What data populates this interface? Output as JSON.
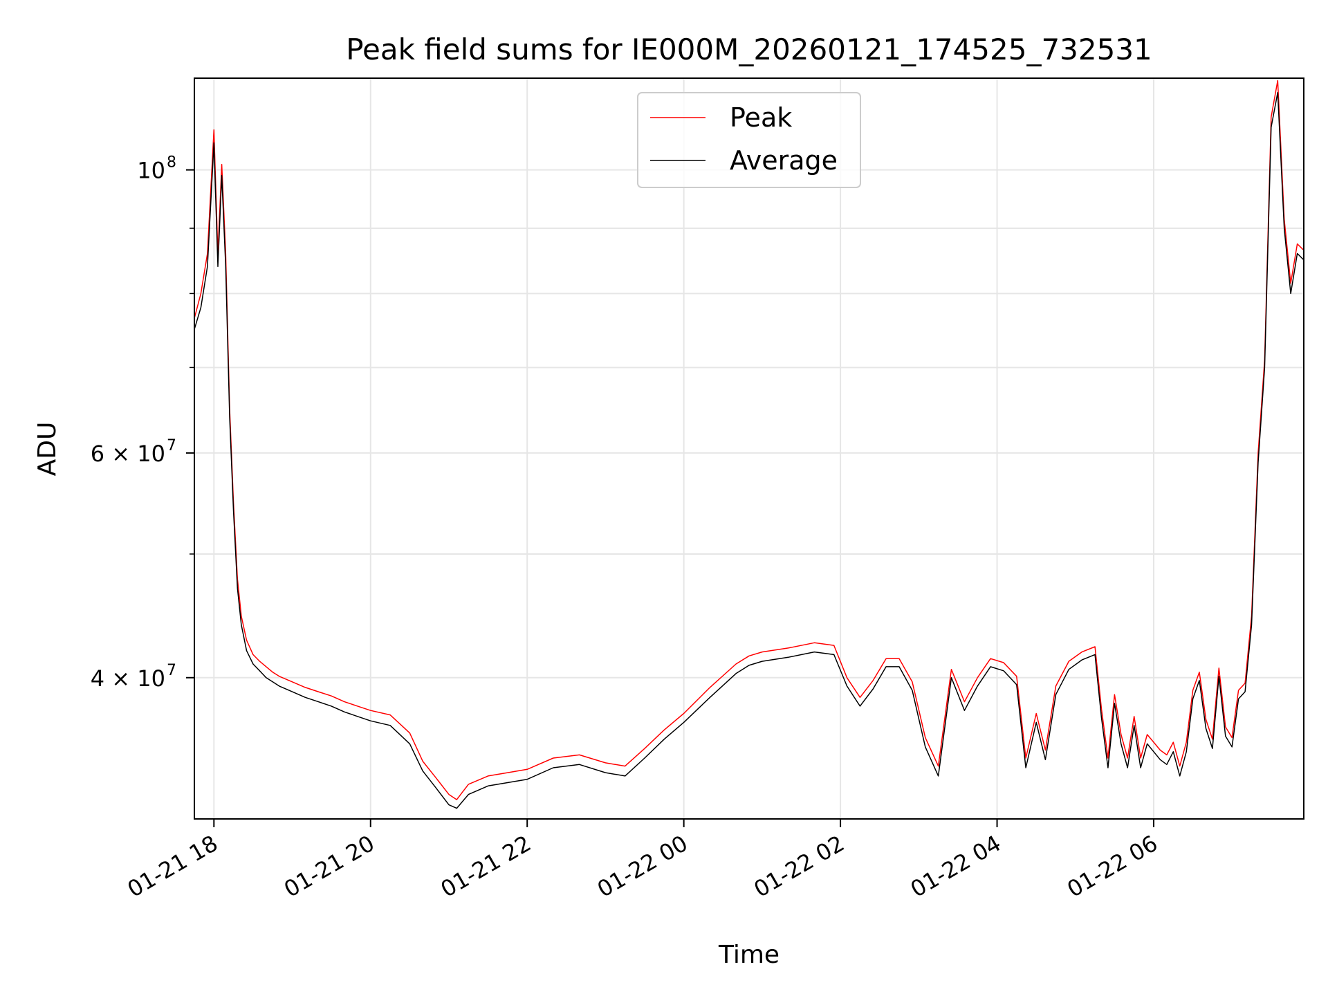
{
  "chart_data": {
    "type": "line",
    "title": "Peak field sums for IE000M_20260121_174525_732531",
    "xlabel": "Time",
    "ylabel": "ADU",
    "xlim": [
      "2026-01-21 17:45",
      "2026-01-22 07:55"
    ],
    "ylim": [
      31000000,
      118000000
    ],
    "yscale": "log",
    "grid": true,
    "legend_position": "upper center",
    "x_ticks": [
      {
        "t": "2026-01-21 18:00",
        "label": "01-21 18"
      },
      {
        "t": "2026-01-21 20:00",
        "label": "01-21 20"
      },
      {
        "t": "2026-01-21 22:00",
        "label": "01-21 22"
      },
      {
        "t": "2026-01-22 00:00",
        "label": "01-22 00"
      },
      {
        "t": "2026-01-22 02:00",
        "label": "01-22 02"
      },
      {
        "t": "2026-01-22 04:00",
        "label": "01-22 04"
      },
      {
        "t": "2026-01-22 06:00",
        "label": "01-22 06"
      }
    ],
    "y_ticks": [
      {
        "v": 40000000,
        "base": "4 × 10",
        "exp": "7"
      },
      {
        "v": 60000000,
        "base": "6 × 10",
        "exp": "7"
      },
      {
        "v": 100000000,
        "base": "10",
        "exp": "8"
      }
    ],
    "y_minor_ticks": [
      50000000,
      70000000,
      80000000,
      90000000
    ],
    "series": [
      {
        "name": "Peak",
        "color": "#ff0000"
      },
      {
        "name": "Average",
        "color": "#000000"
      }
    ],
    "x": [
      "2026-01-21 17:45",
      "2026-01-21 17:50",
      "2026-01-21 17:55",
      "2026-01-21 18:00",
      "2026-01-21 18:03",
      "2026-01-21 18:06",
      "2026-01-21 18:09",
      "2026-01-21 18:12",
      "2026-01-21 18:15",
      "2026-01-21 18:18",
      "2026-01-21 18:21",
      "2026-01-21 18:25",
      "2026-01-21 18:30",
      "2026-01-21 18:35",
      "2026-01-21 18:40",
      "2026-01-21 18:45",
      "2026-01-21 18:50",
      "2026-01-21 19:00",
      "2026-01-21 19:10",
      "2026-01-21 19:20",
      "2026-01-21 19:30",
      "2026-01-21 19:40",
      "2026-01-21 19:50",
      "2026-01-21 20:00",
      "2026-01-21 20:15",
      "2026-01-21 20:30",
      "2026-01-21 20:40",
      "2026-01-21 20:50",
      "2026-01-21 21:00",
      "2026-01-21 21:06",
      "2026-01-21 21:15",
      "2026-01-21 21:30",
      "2026-01-21 21:45",
      "2026-01-21 22:00",
      "2026-01-21 22:20",
      "2026-01-21 22:40",
      "2026-01-21 23:00",
      "2026-01-21 23:15",
      "2026-01-21 23:30",
      "2026-01-21 23:45",
      "2026-01-22 00:00",
      "2026-01-22 00:20",
      "2026-01-22 00:40",
      "2026-01-22 00:50",
      "2026-01-22 01:00",
      "2026-01-22 01:20",
      "2026-01-22 01:40",
      "2026-01-22 01:55",
      "2026-01-22 02:05",
      "2026-01-22 02:15",
      "2026-01-22 02:25",
      "2026-01-22 02:35",
      "2026-01-22 02:45",
      "2026-01-22 02:55",
      "2026-01-22 03:05",
      "2026-01-22 03:15",
      "2026-01-22 03:25",
      "2026-01-22 03:35",
      "2026-01-22 03:45",
      "2026-01-22 03:55",
      "2026-01-22 04:05",
      "2026-01-22 04:15",
      "2026-01-22 04:22",
      "2026-01-22 04:30",
      "2026-01-22 04:37",
      "2026-01-22 04:45",
      "2026-01-22 04:55",
      "2026-01-22 05:05",
      "2026-01-22 05:15",
      "2026-01-22 05:20",
      "2026-01-22 05:25",
      "2026-01-22 05:30",
      "2026-01-22 05:35",
      "2026-01-22 05:40",
      "2026-01-22 05:45",
      "2026-01-22 05:50",
      "2026-01-22 05:55",
      "2026-01-22 06:00",
      "2026-01-22 06:05",
      "2026-01-22 06:10",
      "2026-01-22 06:15",
      "2026-01-22 06:20",
      "2026-01-22 06:25",
      "2026-01-22 06:30",
      "2026-01-22 06:35",
      "2026-01-22 06:40",
      "2026-01-22 06:45",
      "2026-01-22 06:50",
      "2026-01-22 06:55",
      "2026-01-22 07:00",
      "2026-01-22 07:05",
      "2026-01-22 07:10",
      "2026-01-22 07:15",
      "2026-01-22 07:20",
      "2026-01-22 07:25",
      "2026-01-22 07:30",
      "2026-01-22 07:35",
      "2026-01-22 07:40",
      "2026-01-22 07:45",
      "2026-01-22 07:50",
      "2026-01-22 07:55"
    ],
    "average": [
      75000000,
      78000000,
      84000000,
      105000000,
      84000000,
      99000000,
      84000000,
      64000000,
      54000000,
      47000000,
      44000000,
      42000000,
      41000000,
      40500000,
      40000000,
      39700000,
      39400000,
      39000000,
      38600000,
      38300000,
      38000000,
      37600000,
      37300000,
      37000000,
      36700000,
      35500000,
      33800000,
      32800000,
      31800000,
      31600000,
      32400000,
      32900000,
      33100000,
      33300000,
      34000000,
      34200000,
      33700000,
      33500000,
      34600000,
      35800000,
      36900000,
      38600000,
      40300000,
      40900000,
      41200000,
      41500000,
      41900000,
      41700000,
      39400000,
      38000000,
      39200000,
      40800000,
      40800000,
      39100000,
      35300000,
      33500000,
      40000000,
      37700000,
      39400000,
      40800000,
      40500000,
      39500000,
      34000000,
      36900000,
      34500000,
      38800000,
      40600000,
      41300000,
      41700000,
      37200000,
      34000000,
      38200000,
      35500000,
      34000000,
      36700000,
      34000000,
      35500000,
      35000000,
      34500000,
      34200000,
      35000000,
      33500000,
      35000000,
      38500000,
      39800000,
      36500000,
      35200000,
      40100000,
      36000000,
      35300000,
      38500000,
      39000000,
      44000000,
      59000000,
      70000000,
      108000000,
      115000000,
      90000000,
      80000000,
      86000000,
      85000000
    ],
    "peak": [
      76500000,
      80000000,
      86000000,
      107500000,
      86000000,
      101000000,
      86000000,
      65000000,
      54800000,
      47800000,
      44700000,
      42800000,
      41700000,
      41200000,
      40800000,
      40400000,
      40100000,
      39700000,
      39300000,
      39000000,
      38700000,
      38300000,
      38000000,
      37700000,
      37400000,
      36200000,
      34400000,
      33400000,
      32400000,
      32100000,
      33000000,
      33500000,
      33700000,
      33900000,
      34600000,
      34800000,
      34300000,
      34100000,
      35200000,
      36400000,
      37500000,
      39300000,
      41000000,
      41600000,
      41900000,
      42200000,
      42600000,
      42400000,
      40000000,
      38600000,
      39800000,
      41400000,
      41400000,
      39700000,
      35900000,
      34100000,
      40600000,
      38300000,
      40000000,
      41400000,
      41100000,
      40100000,
      34600000,
      37500000,
      35100000,
      39400000,
      41200000,
      41900000,
      42300000,
      37800000,
      34600000,
      38800000,
      36100000,
      34600000,
      37300000,
      34600000,
      36100000,
      35600000,
      35100000,
      34800000,
      35600000,
      34100000,
      35600000,
      39100000,
      40400000,
      37100000,
      35800000,
      40700000,
      36600000,
      35900000,
      39100000,
      39600000,
      44700000,
      60000000,
      71000000,
      110000000,
      117500000,
      91500000,
      81500000,
      87500000,
      86500000
    ]
  }
}
